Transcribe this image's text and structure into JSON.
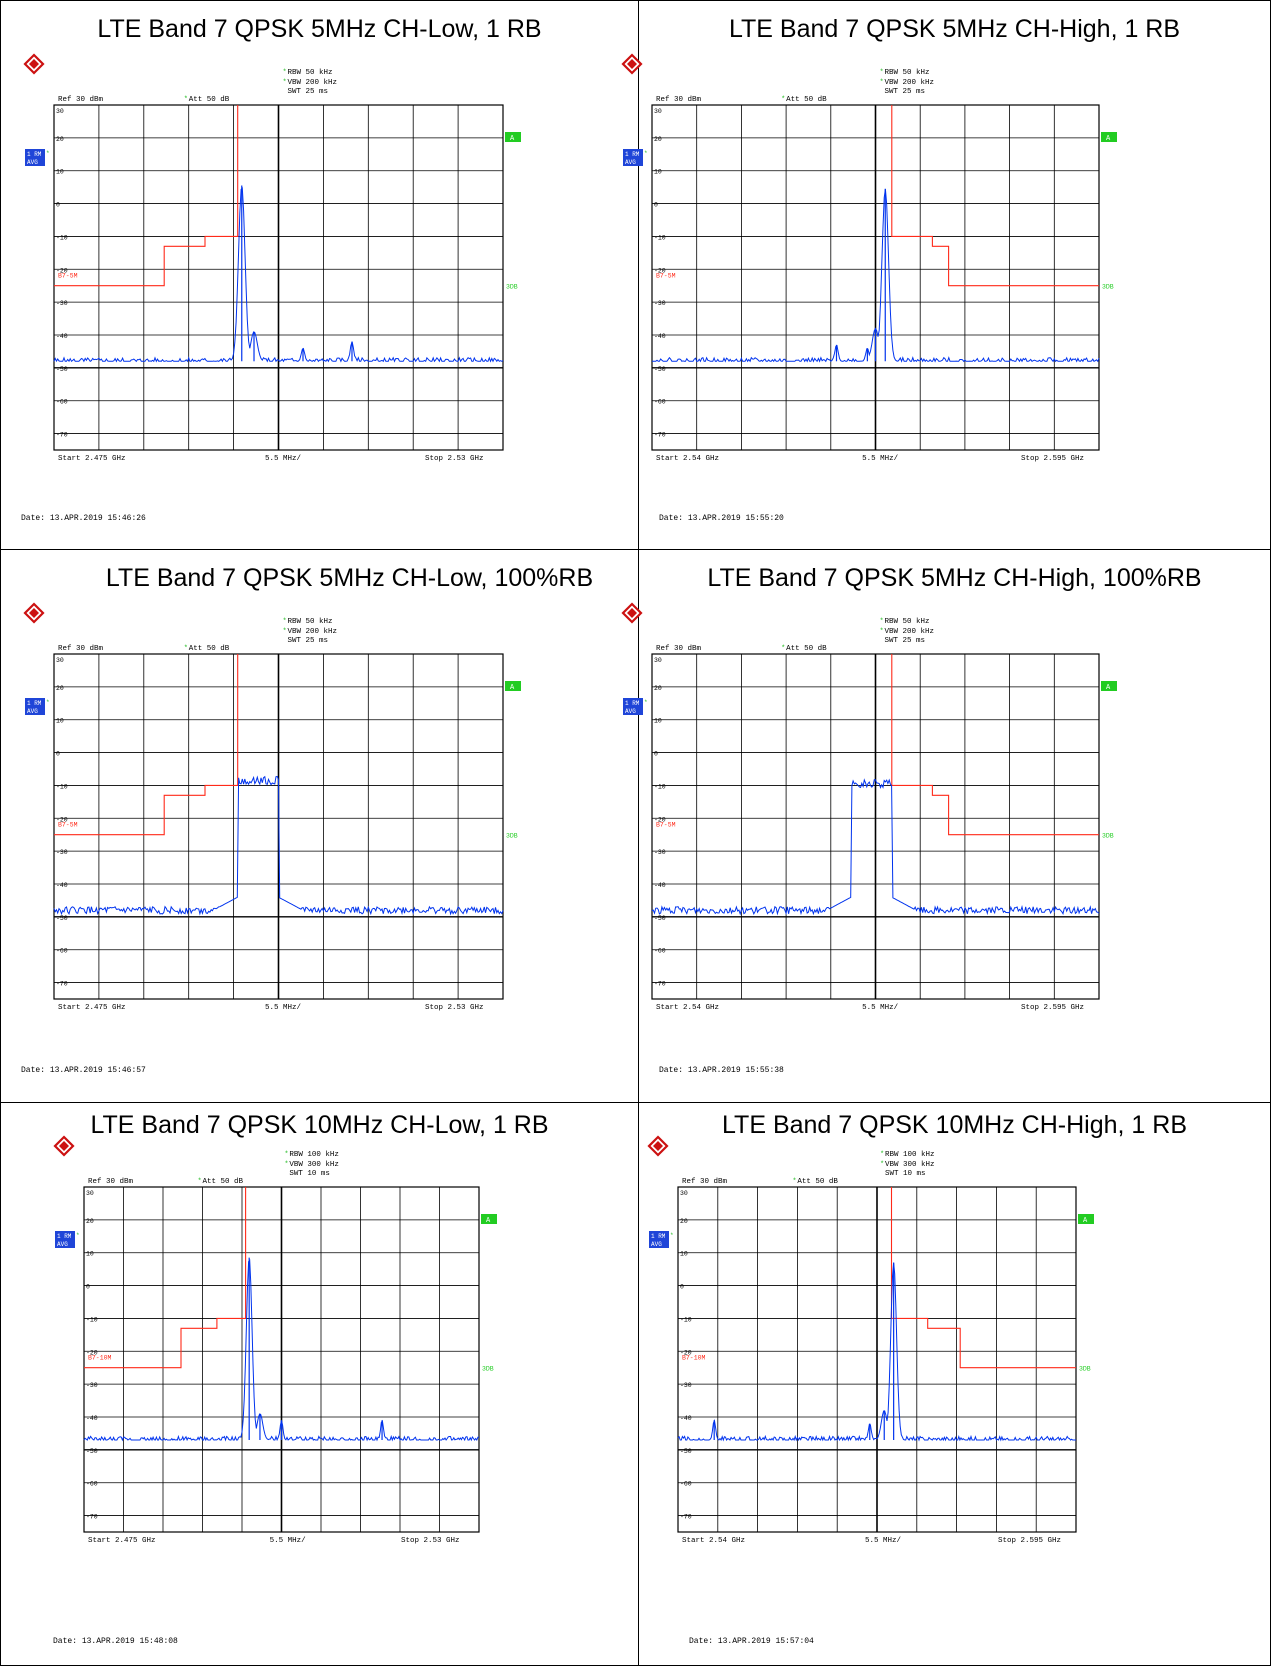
{
  "page": {
    "date_prefix": "Date:"
  },
  "colors": {
    "trace": "#0033ee",
    "limit": "#ff2a1a",
    "badge_green": "#22cc22",
    "badge_blue": "#1f45d8",
    "grid": "#000000"
  },
  "chart_data": [
    {
      "type": "line",
      "title": "LTE Band 7 QPSK 5MHz CH-Low, 1 RB",
      "rbw": "RBW 50 kHz",
      "vbw": "VBW 200 kHz",
      "swt": "SWT 25 ms",
      "ref": "Ref  30 dBm",
      "att": "Att  50 dB",
      "start": "Start  2.475 GHz",
      "span": "5.5 MHz/",
      "stop": "Stop  2.53 GHz",
      "date": "13.APR.2019  15:46:26",
      "limit_label": "B7-5M",
      "trace_label_1": "1 RM",
      "trace_label_2": "AVG",
      "badge_a": "A",
      "badge_3db": "3DB",
      "ylim": [
        -75,
        30
      ],
      "y_ticks": [
        30,
        20,
        10,
        0,
        -10,
        -20,
        -30,
        -40,
        -50,
        -60,
        -70
      ],
      "xlim": [
        2.475,
        2.53
      ],
      "limit": [
        [
          2.475,
          -25
        ],
        [
          2.4885,
          -25
        ],
        [
          2.4885,
          -13
        ],
        [
          2.4935,
          -13
        ],
        [
          2.4935,
          -10
        ],
        [
          2.4975,
          -10
        ],
        [
          2.4975,
          30
        ]
      ],
      "noise_floor": -48,
      "peaks": [
        {
          "x": 2.498,
          "y": 5.5,
          "w": 0.0004
        },
        {
          "x": 2.4995,
          "y": -39,
          "w": 0.0004
        },
        {
          "x": 2.5055,
          "y": -44,
          "w": 0.0002
        },
        {
          "x": 2.5115,
          "y": -42,
          "w": 0.0002
        }
      ],
      "band": null
    },
    {
      "type": "line",
      "title": "LTE Band 7 QPSK 5MHz CH-High, 1 RB",
      "rbw": "RBW 50 kHz",
      "vbw": "VBW 200 kHz",
      "swt": "SWT 25 ms",
      "ref": "Ref  30 dBm",
      "att": "Att  50 dB",
      "start": "Start  2.54 GHz",
      "span": "5.5 MHz/",
      "stop": "Stop  2.595 GHz",
      "date": "13.APR.2019  15:55:20",
      "limit_label": "B7-5M",
      "trace_label_1": "1 RM",
      "trace_label_2": "AVG",
      "badge_a": "A",
      "badge_3db": "3DB",
      "ylim": [
        -75,
        30
      ],
      "y_ticks": [
        30,
        20,
        10,
        0,
        -10,
        -20,
        -30,
        -40,
        -50,
        -60,
        -70
      ],
      "xlim": [
        2.54,
        2.595
      ],
      "limit": [
        [
          2.5695,
          30
        ],
        [
          2.5695,
          -10
        ],
        [
          2.5745,
          -10
        ],
        [
          2.5745,
          -13
        ],
        [
          2.5765,
          -13
        ],
        [
          2.5765,
          -25
        ],
        [
          2.595,
          -25
        ]
      ],
      "noise_floor": -48,
      "peaks": [
        {
          "x": 2.5687,
          "y": 4.5,
          "w": 0.0004
        },
        {
          "x": 2.5675,
          "y": -38,
          "w": 0.0004
        },
        {
          "x": 2.5627,
          "y": -43,
          "w": 0.0002
        },
        {
          "x": 2.5665,
          "y": -44,
          "w": 0.0002
        }
      ],
      "band": null
    },
    {
      "type": "line",
      "title": "LTE Band 7 QPSK 5MHz CH-Low, 100%RB",
      "rbw": "RBW 50 kHz",
      "vbw": "VBW 200 kHz",
      "swt": "SWT 25 ms",
      "ref": "Ref  30 dBm",
      "att": "Att  50 dB",
      "start": "Start  2.475 GHz",
      "span": "5.5 MHz/",
      "stop": "Stop  2.53 GHz",
      "date": "13.APR.2019  15:46:57",
      "limit_label": "B7-5M",
      "trace_label_1": "1 RM",
      "trace_label_2": "AVG",
      "badge_a": "A",
      "badge_3db": "3DB",
      "ylim": [
        -75,
        30
      ],
      "y_ticks": [
        30,
        20,
        10,
        0,
        -10,
        -20,
        -30,
        -40,
        -50,
        -60,
        -70
      ],
      "xlim": [
        2.475,
        2.53
      ],
      "limit": [
        [
          2.475,
          -25
        ],
        [
          2.4885,
          -25
        ],
        [
          2.4885,
          -13
        ],
        [
          2.4935,
          -13
        ],
        [
          2.4935,
          -10
        ],
        [
          2.4975,
          -10
        ],
        [
          2.4975,
          30
        ]
      ],
      "noise_floor": -48,
      "peaks": [],
      "band": {
        "x0": 2.4975,
        "x1": 2.5025,
        "level": -8.5,
        "skirt": -44
      }
    },
    {
      "type": "line",
      "title": "LTE Band 7 QPSK 5MHz CH-High, 100%RB",
      "rbw": "RBW 50 kHz",
      "vbw": "VBW 200 kHz",
      "swt": "SWT 25 ms",
      "ref": "Ref  30 dBm",
      "att": "Att  50 dB",
      "start": "Start  2.54 GHz",
      "span": "5.5 MHz/",
      "stop": "Stop  2.595 GHz",
      "date": "13.APR.2019  15:55:38",
      "limit_label": "B7-5M",
      "trace_label_1": "1 RM",
      "trace_label_2": "AVG",
      "badge_a": "A",
      "badge_3db": "3DB",
      "ylim": [
        -75,
        30
      ],
      "y_ticks": [
        30,
        20,
        10,
        0,
        -10,
        -20,
        -30,
        -40,
        -50,
        -60,
        -70
      ],
      "xlim": [
        2.54,
        2.595
      ],
      "limit": [
        [
          2.5695,
          30
        ],
        [
          2.5695,
          -10
        ],
        [
          2.5745,
          -10
        ],
        [
          2.5745,
          -13
        ],
        [
          2.5765,
          -13
        ],
        [
          2.5765,
          -25
        ],
        [
          2.595,
          -25
        ]
      ],
      "noise_floor": -48,
      "peaks": [],
      "band": {
        "x0": 2.5645,
        "x1": 2.5695,
        "level": -9.5,
        "skirt": -44
      }
    },
    {
      "type": "line",
      "title": "LTE Band 7 QPSK 10MHz CH-Low, 1 RB",
      "rbw": "RBW 100 kHz",
      "vbw": "VBW 300 kHz",
      "swt": "SWT 10 ms",
      "ref": "Ref  30 dBm",
      "att": "Att  50 dB",
      "start": "Start  2.475 GHz",
      "span": "5.5 MHz/",
      "stop": "Stop  2.53 GHz",
      "date": "13.APR.2019  15:48:08",
      "limit_label": "B7-10M",
      "trace_label_1": "1 RM",
      "trace_label_2": "AVG",
      "badge_a": "A",
      "badge_3db": "3DB",
      "ylim": [
        -75,
        30
      ],
      "y_ticks": [
        30,
        20,
        10,
        0,
        -10,
        -20,
        -30,
        -40,
        -50,
        -60,
        -70
      ],
      "xlim": [
        2.475,
        2.53
      ],
      "limit": [
        [
          2.475,
          -25
        ],
        [
          2.4885,
          -25
        ],
        [
          2.4885,
          -13
        ],
        [
          2.4935,
          -13
        ],
        [
          2.4935,
          -10
        ],
        [
          2.4975,
          -10
        ],
        [
          2.4975,
          30
        ]
      ],
      "noise_floor": -47,
      "peaks": [
        {
          "x": 2.498,
          "y": 8.5,
          "w": 0.0004
        },
        {
          "x": 2.4995,
          "y": -39,
          "w": 0.0004
        },
        {
          "x": 2.5025,
          "y": -41,
          "w": 0.0002
        },
        {
          "x": 2.5165,
          "y": -41,
          "w": 0.0002
        }
      ],
      "band": null
    },
    {
      "type": "line",
      "title": "LTE Band 7 QPSK 10MHz CH-High, 1 RB",
      "rbw": "RBW 100 kHz",
      "vbw": "VBW 300 kHz",
      "swt": "SWT 10 ms",
      "ref": "Ref  30 dBm",
      "att": "Att  50 dB",
      "start": "Start  2.54 GHz",
      "span": "5.5 MHz/",
      "stop": "Stop  2.595 GHz",
      "date": "13.APR.2019  15:57:04",
      "limit_label": "B7-10M",
      "trace_label_1": "1 RM",
      "trace_label_2": "AVG",
      "badge_a": "A",
      "badge_3db": "3DB",
      "ylim": [
        -75,
        30
      ],
      "y_ticks": [
        30,
        20,
        10,
        0,
        -10,
        -20,
        -30,
        -40,
        -50,
        -60,
        -70
      ],
      "xlim": [
        2.54,
        2.595
      ],
      "limit": [
        [
          2.5695,
          30
        ],
        [
          2.5695,
          -10
        ],
        [
          2.5745,
          -10
        ],
        [
          2.5745,
          -13
        ],
        [
          2.579,
          -13
        ],
        [
          2.579,
          -25
        ],
        [
          2.595,
          -25
        ]
      ],
      "noise_floor": -47,
      "peaks": [
        {
          "x": 2.5698,
          "y": 7,
          "w": 0.0004
        },
        {
          "x": 2.5685,
          "y": -38,
          "w": 0.0004
        },
        {
          "x": 2.545,
          "y": -41,
          "w": 0.0002
        },
        {
          "x": 2.5665,
          "y": -42,
          "w": 0.0002
        }
      ],
      "band": null
    }
  ]
}
